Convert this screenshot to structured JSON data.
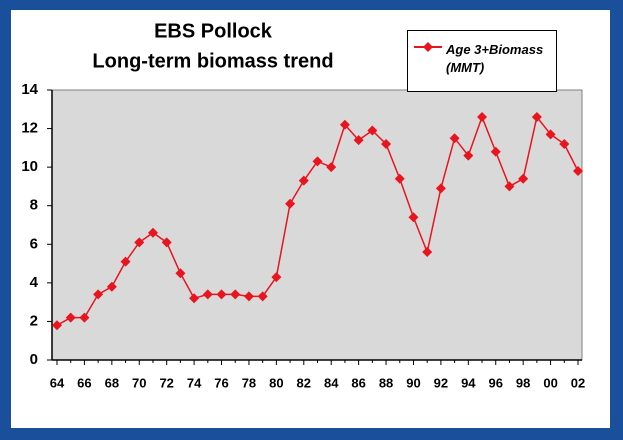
{
  "chart_data": {
    "type": "line",
    "title": "EBS Pollock",
    "subtitle": "Long-term biomass trend",
    "categories": [
      "64",
      null,
      "66",
      null,
      "68",
      null,
      "70",
      null,
      "72",
      null,
      "74",
      null,
      "76",
      null,
      "78",
      null,
      "80",
      null,
      "82",
      null,
      "84",
      null,
      "86",
      null,
      "88",
      null,
      "90",
      null,
      "92",
      null,
      "94",
      null,
      "96",
      null,
      "98",
      null,
      "00",
      null,
      "02"
    ],
    "series": [
      {
        "name": "Age 3+Biomass (MMT)",
        "color": "#e8141e",
        "values": [
          1.8,
          2.2,
          2.2,
          3.4,
          3.8,
          5.1,
          6.1,
          6.6,
          6.1,
          4.5,
          3.2,
          3.4,
          3.4,
          3.4,
          3.3,
          3.3,
          4.3,
          8.1,
          9.3,
          10.3,
          10.0,
          12.2,
          11.4,
          11.9,
          11.2,
          9.4,
          7.4,
          5.6,
          8.9,
          11.5,
          10.6,
          12.6,
          10.8,
          9.0,
          9.4,
          12.6,
          11.7,
          11.2,
          9.8
        ]
      }
    ],
    "ylim": [
      0,
      14
    ],
    "yticks": [
      0,
      2,
      4,
      6,
      8,
      10,
      12,
      14
    ],
    "plot_background": "#d9d9d9",
    "legend": "upper right"
  }
}
